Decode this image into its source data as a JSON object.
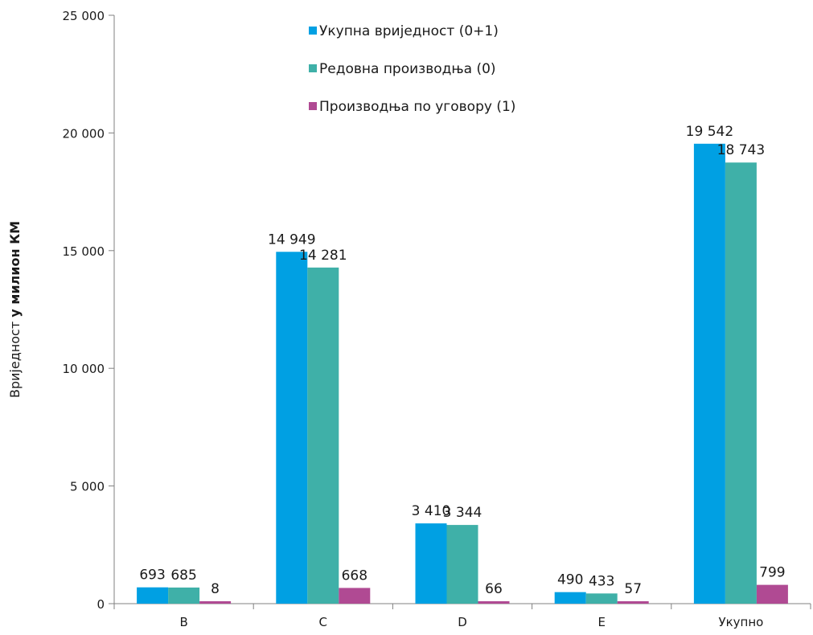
{
  "chart_data": {
    "type": "bar",
    "categories": [
      "B",
      "C",
      "D",
      "E",
      "Укупно"
    ],
    "series": [
      {
        "name": "Укупна вриједност (0+1)",
        "values": [
          693,
          14949,
          3410,
          490,
          19542
        ],
        "labels": [
          "693",
          "14 949",
          "3 410",
          "490",
          "19 542"
        ],
        "color": "#00a0e3"
      },
      {
        "name": "Редовна производња (0)",
        "values": [
          685,
          14281,
          3344,
          433,
          18743
        ],
        "labels": [
          "685",
          "14 281",
          "3 344",
          "433",
          "18 743"
        ],
        "color": "#3fb0a8"
      },
      {
        "name": "Производња по уговору (1)",
        "values": [
          8,
          668,
          66,
          57,
          799
        ],
        "labels": [
          "8",
          "668",
          "66",
          "57",
          "799"
        ],
        "color": "#b04a93"
      }
    ],
    "ylabel_prefix": "Вриједност ",
    "ylabel_bold": "у милион КМ",
    "ylim": [
      0,
      25000
    ],
    "yticks": [
      0,
      5000,
      10000,
      15000,
      20000,
      25000
    ],
    "ytick_labels": [
      "0",
      "5 000",
      "10 000",
      "15 000",
      "20 000",
      "25 000"
    ],
    "legend_position": "top-center",
    "grid": false
  }
}
